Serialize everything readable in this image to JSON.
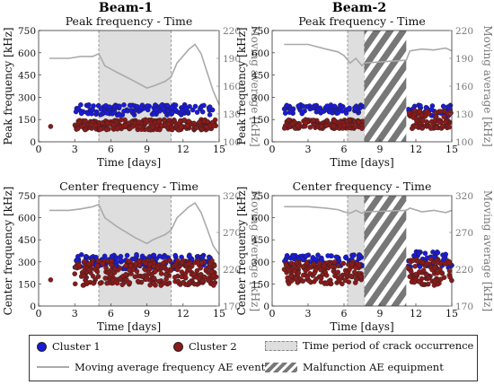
{
  "colors": {
    "cluster1": "#1a1adb",
    "cluster2": "#8b1a1a",
    "ma": "#aaaaaa",
    "crack": "#dedede",
    "malfunction": "#777777"
  },
  "column_titles": [
    "Beam-1",
    "Beam-2"
  ],
  "legend": {
    "cluster1": "Cluster 1",
    "cluster2": "Cluster 2",
    "crack": "Time period of crack occurrence",
    "ma": "Moving average frequency AE events",
    "malfunction": "Malfunction AE equipment"
  },
  "chart_data": [
    {
      "type": "scatter",
      "column": "Beam-1",
      "title": "Peak frequency - Time",
      "xlabel": "Time [days]",
      "ylabel": "Peak frequency [kHz]",
      "y2label": "Moving average [kHz]",
      "xlim": [
        0,
        15
      ],
      "ylim": [
        0,
        750
      ],
      "y2lim": [
        100,
        220
      ],
      "xticks": [
        0,
        3,
        6,
        9,
        12,
        15
      ],
      "yticks": [
        0,
        150,
        300,
        450,
        600,
        750
      ],
      "y2ticks": [
        100,
        130,
        160,
        190,
        220
      ],
      "crack_period": [
        5,
        11
      ],
      "clusters": [
        {
          "name": "Cluster 1",
          "segments": [
            {
              "x": [
                3,
                14.5
              ],
              "y": [
                180,
                250
              ]
            }
          ]
        },
        {
          "name": "Cluster 2",
          "segments": [
            {
              "x": [
                1,
                1
              ],
              "y": [
                95,
                105
              ]
            },
            {
              "x": [
                3,
                14.8
              ],
              "y": [
                80,
                150
              ]
            }
          ]
        }
      ],
      "moving_average": {
        "x": [
          0.9,
          2.5,
          3.5,
          4.5,
          5.0,
          5.5,
          6.5,
          8.0,
          9.0,
          9.5,
          10.5,
          11.0,
          11.5,
          12.5,
          13.0,
          13.5,
          14.0,
          14.5,
          15.0
        ],
        "y": [
          190,
          190,
          192,
          192,
          195,
          182,
          175,
          165,
          158,
          160,
          165,
          170,
          185,
          200,
          205,
          195,
          175,
          155,
          140
        ]
      }
    },
    {
      "type": "scatter",
      "column": "Beam-2",
      "title": "Peak frequency - Time",
      "xlabel": "Time [days]",
      "ylabel": "Peak frequency [kHz]",
      "y2label": "Moving average [kHz]",
      "xlim": [
        0,
        15
      ],
      "ylim": [
        0,
        750
      ],
      "y2lim": [
        100,
        220
      ],
      "xticks": [
        0,
        3,
        6,
        9,
        12,
        15
      ],
      "yticks": [
        0,
        150,
        300,
        450,
        600,
        750
      ],
      "y2ticks": [
        100,
        130,
        160,
        190,
        220
      ],
      "crack_period": [
        6.3,
        7.7
      ],
      "malfunction_period": [
        7.7,
        11.2
      ],
      "clusters": [
        {
          "name": "Cluster 1",
          "segments": [
            {
              "x": [
                1,
                7.6
              ],
              "y": [
                190,
                250
              ]
            },
            {
              "x": [
                11.3,
                15
              ],
              "y": [
                170,
                250
              ]
            }
          ]
        },
        {
          "name": "Cluster 2",
          "segments": [
            {
              "x": [
                1,
                7.6
              ],
              "y": [
                90,
                150
              ]
            },
            {
              "x": [
                11.3,
                15
              ],
              "y": [
                90,
                210
              ]
            }
          ]
        }
      ],
      "moving_average": {
        "x": [
          1.0,
          3.0,
          4.5,
          5.5,
          6.0,
          6.5,
          7.0,
          7.5,
          7.7,
          11.2,
          11.5,
          12.5,
          13.5,
          14.5,
          15.0
        ],
        "y": [
          205,
          205,
          200,
          197,
          193,
          185,
          190,
          182,
          185,
          188,
          198,
          200,
          199,
          201,
          198
        ]
      }
    },
    {
      "type": "scatter",
      "column": "Beam-1",
      "title": "Center frequency - Time",
      "xlabel": "Time [days]",
      "ylabel": "Center frequency [kHz]",
      "y2label": "Moving average [kHz]",
      "xlim": [
        0,
        15
      ],
      "ylim": [
        0,
        750
      ],
      "y2lim": [
        170,
        320
      ],
      "xticks": [
        0,
        3,
        6,
        9,
        12,
        15
      ],
      "yticks": [
        0,
        150,
        300,
        450,
        600,
        750
      ],
      "y2ticks": [
        170,
        220,
        270,
        320
      ],
      "crack_period": [
        5,
        11
      ],
      "clusters": [
        {
          "name": "Cluster 1",
          "segments": [
            {
              "x": [
                3,
                14.5
              ],
              "y": [
                250,
                350
              ]
            }
          ]
        },
        {
          "name": "Cluster 2",
          "segments": [
            {
              "x": [
                1,
                1
              ],
              "y": [
                175,
                185
              ]
            },
            {
              "x": [
                3,
                14.8
              ],
              "y": [
                140,
                310
              ]
            }
          ]
        }
      ],
      "moving_average": {
        "x": [
          0.9,
          2.5,
          3.5,
          4.5,
          5.0,
          5.5,
          6.5,
          8.0,
          9.0,
          9.5,
          10.5,
          11.0,
          11.5,
          12.5,
          13.0,
          13.5,
          14.0,
          14.5,
          15.0
        ],
        "y": [
          300,
          300,
          302,
          305,
          308,
          290,
          278,
          263,
          255,
          260,
          267,
          273,
          290,
          305,
          310,
          297,
          275,
          252,
          240
        ]
      }
    },
    {
      "type": "scatter",
      "column": "Beam-2",
      "title": "Center frequency - Time",
      "xlabel": "Time [days]",
      "ylabel": "Center frequency [kHz]",
      "y2label": "Moving average [kHz]",
      "xlim": [
        0,
        15
      ],
      "ylim": [
        0,
        750
      ],
      "y2lim": [
        170,
        320
      ],
      "xticks": [
        0,
        3,
        6,
        9,
        12,
        15
      ],
      "yticks": [
        0,
        150,
        300,
        450,
        600,
        750
      ],
      "y2ticks": [
        170,
        220,
        270,
        320
      ],
      "crack_period": [
        6.3,
        7.7
      ],
      "malfunction_period": [
        7.7,
        11.2
      ],
      "clusters": [
        {
          "name": "Cluster 1",
          "segments": [
            {
              "x": [
                1,
                7.6
              ],
              "y": [
                270,
                350
              ]
            },
            {
              "x": [
                11.3,
                15
              ],
              "y": [
                260,
                370
              ]
            }
          ]
        },
        {
          "name": "Cluster 2",
          "segments": [
            {
              "x": [
                1,
                7.6
              ],
              "y": [
                150,
                300
              ]
            },
            {
              "x": [
                11.3,
                15
              ],
              "y": [
                140,
                320
              ]
            }
          ]
        }
      ],
      "moving_average": {
        "x": [
          1.0,
          3.0,
          4.5,
          5.5,
          6.0,
          6.5,
          7.0,
          7.5,
          7.7,
          11.2,
          11.5,
          12.5,
          13.5,
          14.5,
          15.0
        ],
        "y": [
          305,
          305,
          303,
          301,
          298,
          296,
          300,
          296,
          298,
          300,
          303,
          298,
          300,
          297,
          300
        ]
      }
    }
  ]
}
